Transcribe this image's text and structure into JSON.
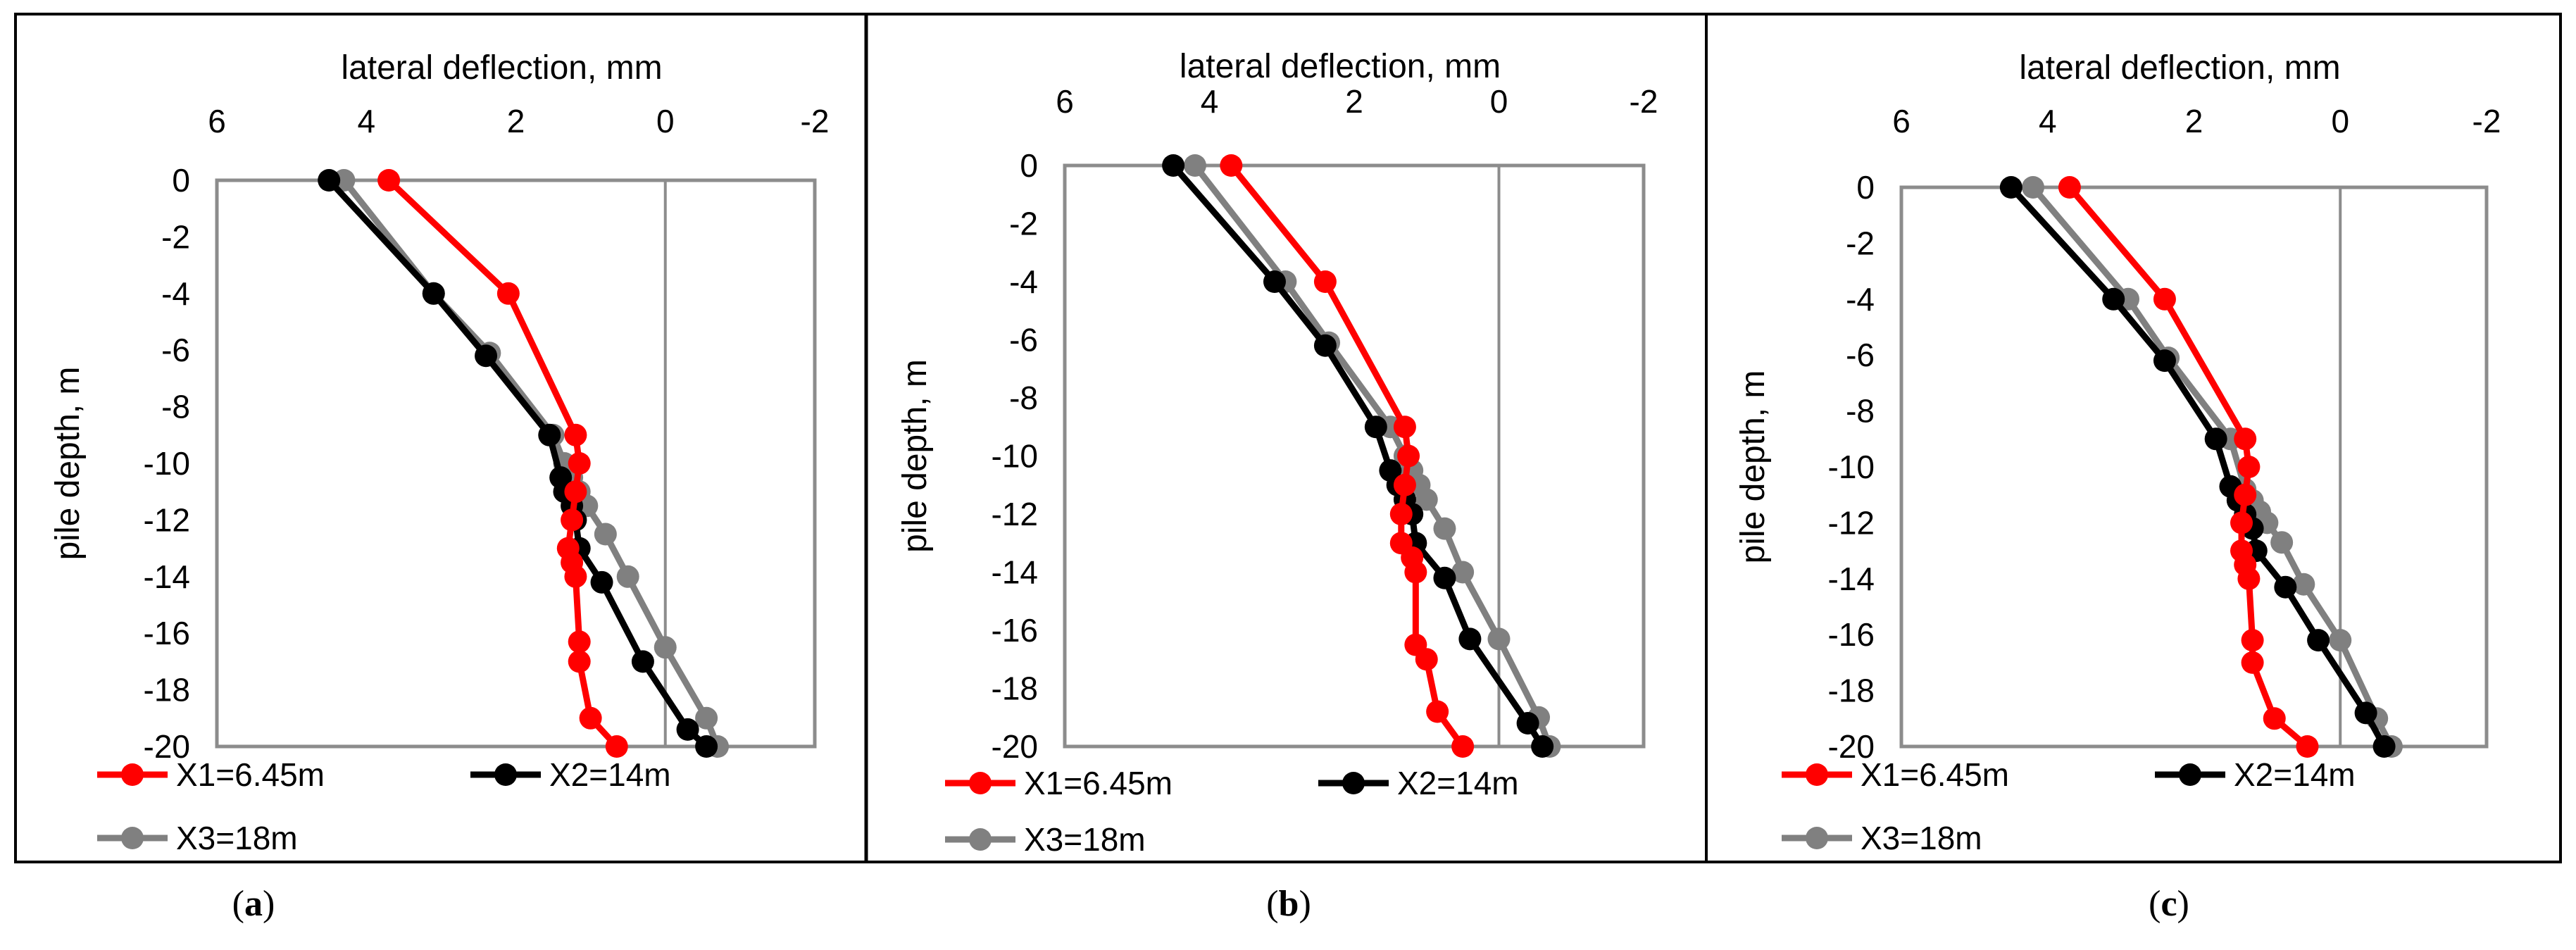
{
  "chart_data": [
    {
      "panel": "a",
      "caption_letter": "a",
      "type": "line",
      "xlabel": "lateral deflection, mm",
      "ylabel": "pile depth, m",
      "xlim": [
        6,
        -2
      ],
      "ylim": [
        0,
        -20
      ],
      "xticks": [
        "6",
        "4",
        "2",
        "0",
        "-2"
      ],
      "yticks": [
        "0",
        "-2",
        "-4",
        "-6",
        "-8",
        "-10",
        "-12",
        "-14",
        "-16",
        "-18",
        "-20"
      ],
      "series": [
        {
          "name": "X1=6.45m",
          "color": "#ff0000",
          "x": [
            3.7,
            2.1,
            1.2,
            1.15,
            1.2,
            1.25,
            1.3,
            1.25,
            1.2,
            1.15,
            1.15,
            1.0,
            0.65
          ],
          "y": [
            0,
            -4,
            -9,
            -10,
            -11,
            -12,
            -13,
            -13.5,
            -14,
            -16.3,
            -17,
            -19,
            -20
          ]
        },
        {
          "name": "X2=14m",
          "color": "#000000",
          "x": [
            4.5,
            3.1,
            2.4,
            1.55,
            1.4,
            1.35,
            1.25,
            1.2,
            1.15,
            0.85,
            0.3,
            -0.3,
            -0.55
          ],
          "y": [
            0,
            -4,
            -6.2,
            -9,
            -10.5,
            -11,
            -11.5,
            -12,
            -13,
            -14.2,
            -17,
            -19.4,
            -20
          ]
        },
        {
          "name": "X3=18m",
          "color": "#808080",
          "x": [
            4.3,
            3.1,
            2.35,
            1.5,
            1.35,
            1.25,
            1.15,
            1.05,
            0.8,
            0.5,
            0.0,
            -0.55,
            -0.7
          ],
          "y": [
            0,
            -4,
            -6.1,
            -9,
            -10,
            -10.5,
            -11,
            -11.5,
            -12.5,
            -14,
            -16.5,
            -19,
            -20
          ]
        }
      ]
    },
    {
      "panel": "b",
      "caption_letter": "b",
      "type": "line",
      "xlabel": "lateral deflection, mm",
      "ylabel": "pile depth, m",
      "xlim": [
        6,
        -2
      ],
      "ylim": [
        0,
        -20
      ],
      "xticks": [
        "6",
        "4",
        "2",
        "0",
        "-2"
      ],
      "yticks": [
        "0",
        "-2",
        "-4",
        "-6",
        "-8",
        "-10",
        "-12",
        "-14",
        "-16",
        "-18",
        "-20"
      ],
      "series": [
        {
          "name": "X1=6.45m",
          "color": "#ff0000",
          "x": [
            3.7,
            2.4,
            1.3,
            1.25,
            1.3,
            1.35,
            1.35,
            1.2,
            1.15,
            1.15,
            1.0,
            0.85,
            0.5
          ],
          "y": [
            0,
            -4,
            -9,
            -10,
            -11,
            -12,
            -13,
            -13.5,
            -14,
            -16.5,
            -17,
            -18.8,
            -20
          ]
        },
        {
          "name": "X2=14m",
          "color": "#000000",
          "x": [
            4.5,
            3.1,
            2.4,
            1.7,
            1.5,
            1.4,
            1.3,
            1.2,
            1.15,
            0.75,
            0.4,
            -0.4,
            -0.6
          ],
          "y": [
            0,
            -4,
            -6.2,
            -9,
            -10.5,
            -11,
            -11.5,
            -12,
            -13,
            -14.2,
            -16.3,
            -19.2,
            -20
          ]
        },
        {
          "name": "X3=18m",
          "color": "#808080",
          "x": [
            4.2,
            2.95,
            2.35,
            1.5,
            1.3,
            1.2,
            1.1,
            1.0,
            0.75,
            0.5,
            0.0,
            -0.55,
            -0.7
          ],
          "y": [
            0,
            -4,
            -6.1,
            -9,
            -10,
            -10.5,
            -11,
            -11.5,
            -12.5,
            -14,
            -16.3,
            -19,
            -20
          ]
        }
      ]
    },
    {
      "panel": "c",
      "caption_letter": "c",
      "type": "line",
      "xlabel": "lateral deflection, mm",
      "ylabel": "pile depth, m",
      "xlim": [
        6,
        -2
      ],
      "ylim": [
        0,
        -20
      ],
      "xticks": [
        "6",
        "4",
        "2",
        "0",
        "-2"
      ],
      "yticks": [
        "0",
        "-2",
        "-4",
        "-6",
        "-8",
        "-10",
        "-12",
        "-14",
        "-16",
        "-18",
        "-20"
      ],
      "series": [
        {
          "name": "X1=6.45m",
          "color": "#ff0000",
          "x": [
            3.7,
            2.4,
            1.3,
            1.25,
            1.3,
            1.35,
            1.35,
            1.3,
            1.25,
            1.2,
            1.2,
            0.9,
            0.45
          ],
          "y": [
            0,
            -4,
            -9,
            -10,
            -11,
            -12,
            -13,
            -13.5,
            -14,
            -16.2,
            -17,
            -19,
            -20
          ]
        },
        {
          "name": "X2=14m",
          "color": "#000000",
          "x": [
            4.5,
            3.1,
            2.4,
            1.7,
            1.5,
            1.4,
            1.3,
            1.2,
            1.15,
            0.75,
            0.3,
            -0.35,
            -0.6
          ],
          "y": [
            0,
            -4,
            -6.2,
            -9,
            -10.7,
            -11.2,
            -11.7,
            -12.2,
            -13,
            -14.3,
            -16.2,
            -18.8,
            -20
          ]
        },
        {
          "name": "X3=18m",
          "color": "#808080",
          "x": [
            4.2,
            2.9,
            2.35,
            1.5,
            1.3,
            1.2,
            1.1,
            1.0,
            0.8,
            0.5,
            0.0,
            -0.5,
            -0.7
          ],
          "y": [
            0,
            -4,
            -6.1,
            -9,
            -10.8,
            -11.2,
            -11.6,
            -12,
            -12.7,
            -14.2,
            -16.2,
            -19,
            -20
          ]
        }
      ]
    }
  ]
}
